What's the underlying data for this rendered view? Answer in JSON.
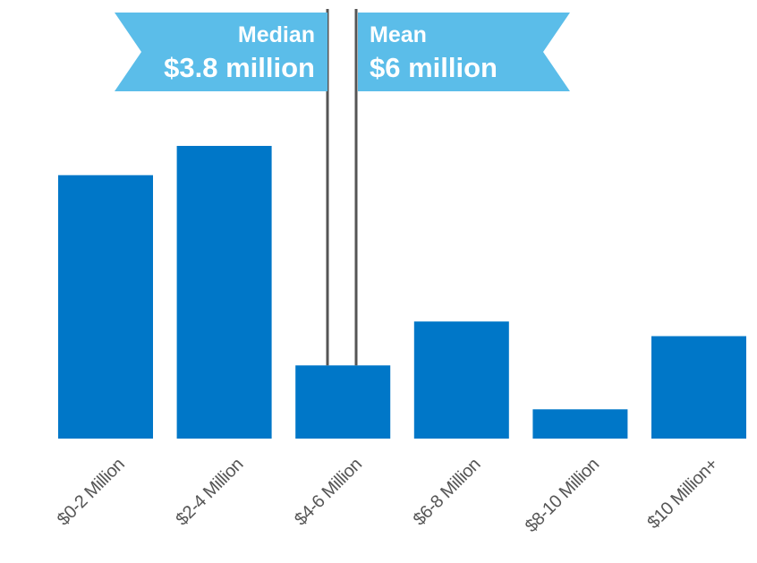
{
  "chart_data": {
    "type": "bar",
    "categories": [
      "$0-2 Million",
      "$2-4 Million",
      "$4-6 Million",
      "$6-8 Million",
      "$8-10 Million",
      "$10 Million+"
    ],
    "values": [
      9,
      10,
      2.5,
      4,
      1,
      3.5
    ],
    "ylim": [
      0,
      10
    ],
    "grid": false,
    "colors": {
      "bar": "#0077c8",
      "banner": "#5bbde9",
      "marker_line": "#555555"
    },
    "annotations": [
      {
        "name": "median",
        "label": "Median",
        "value_text": "$3.8 million",
        "x": 3.8
      },
      {
        "name": "mean",
        "label": "Mean",
        "value_text": "$6 million",
        "x": 6
      }
    ]
  }
}
